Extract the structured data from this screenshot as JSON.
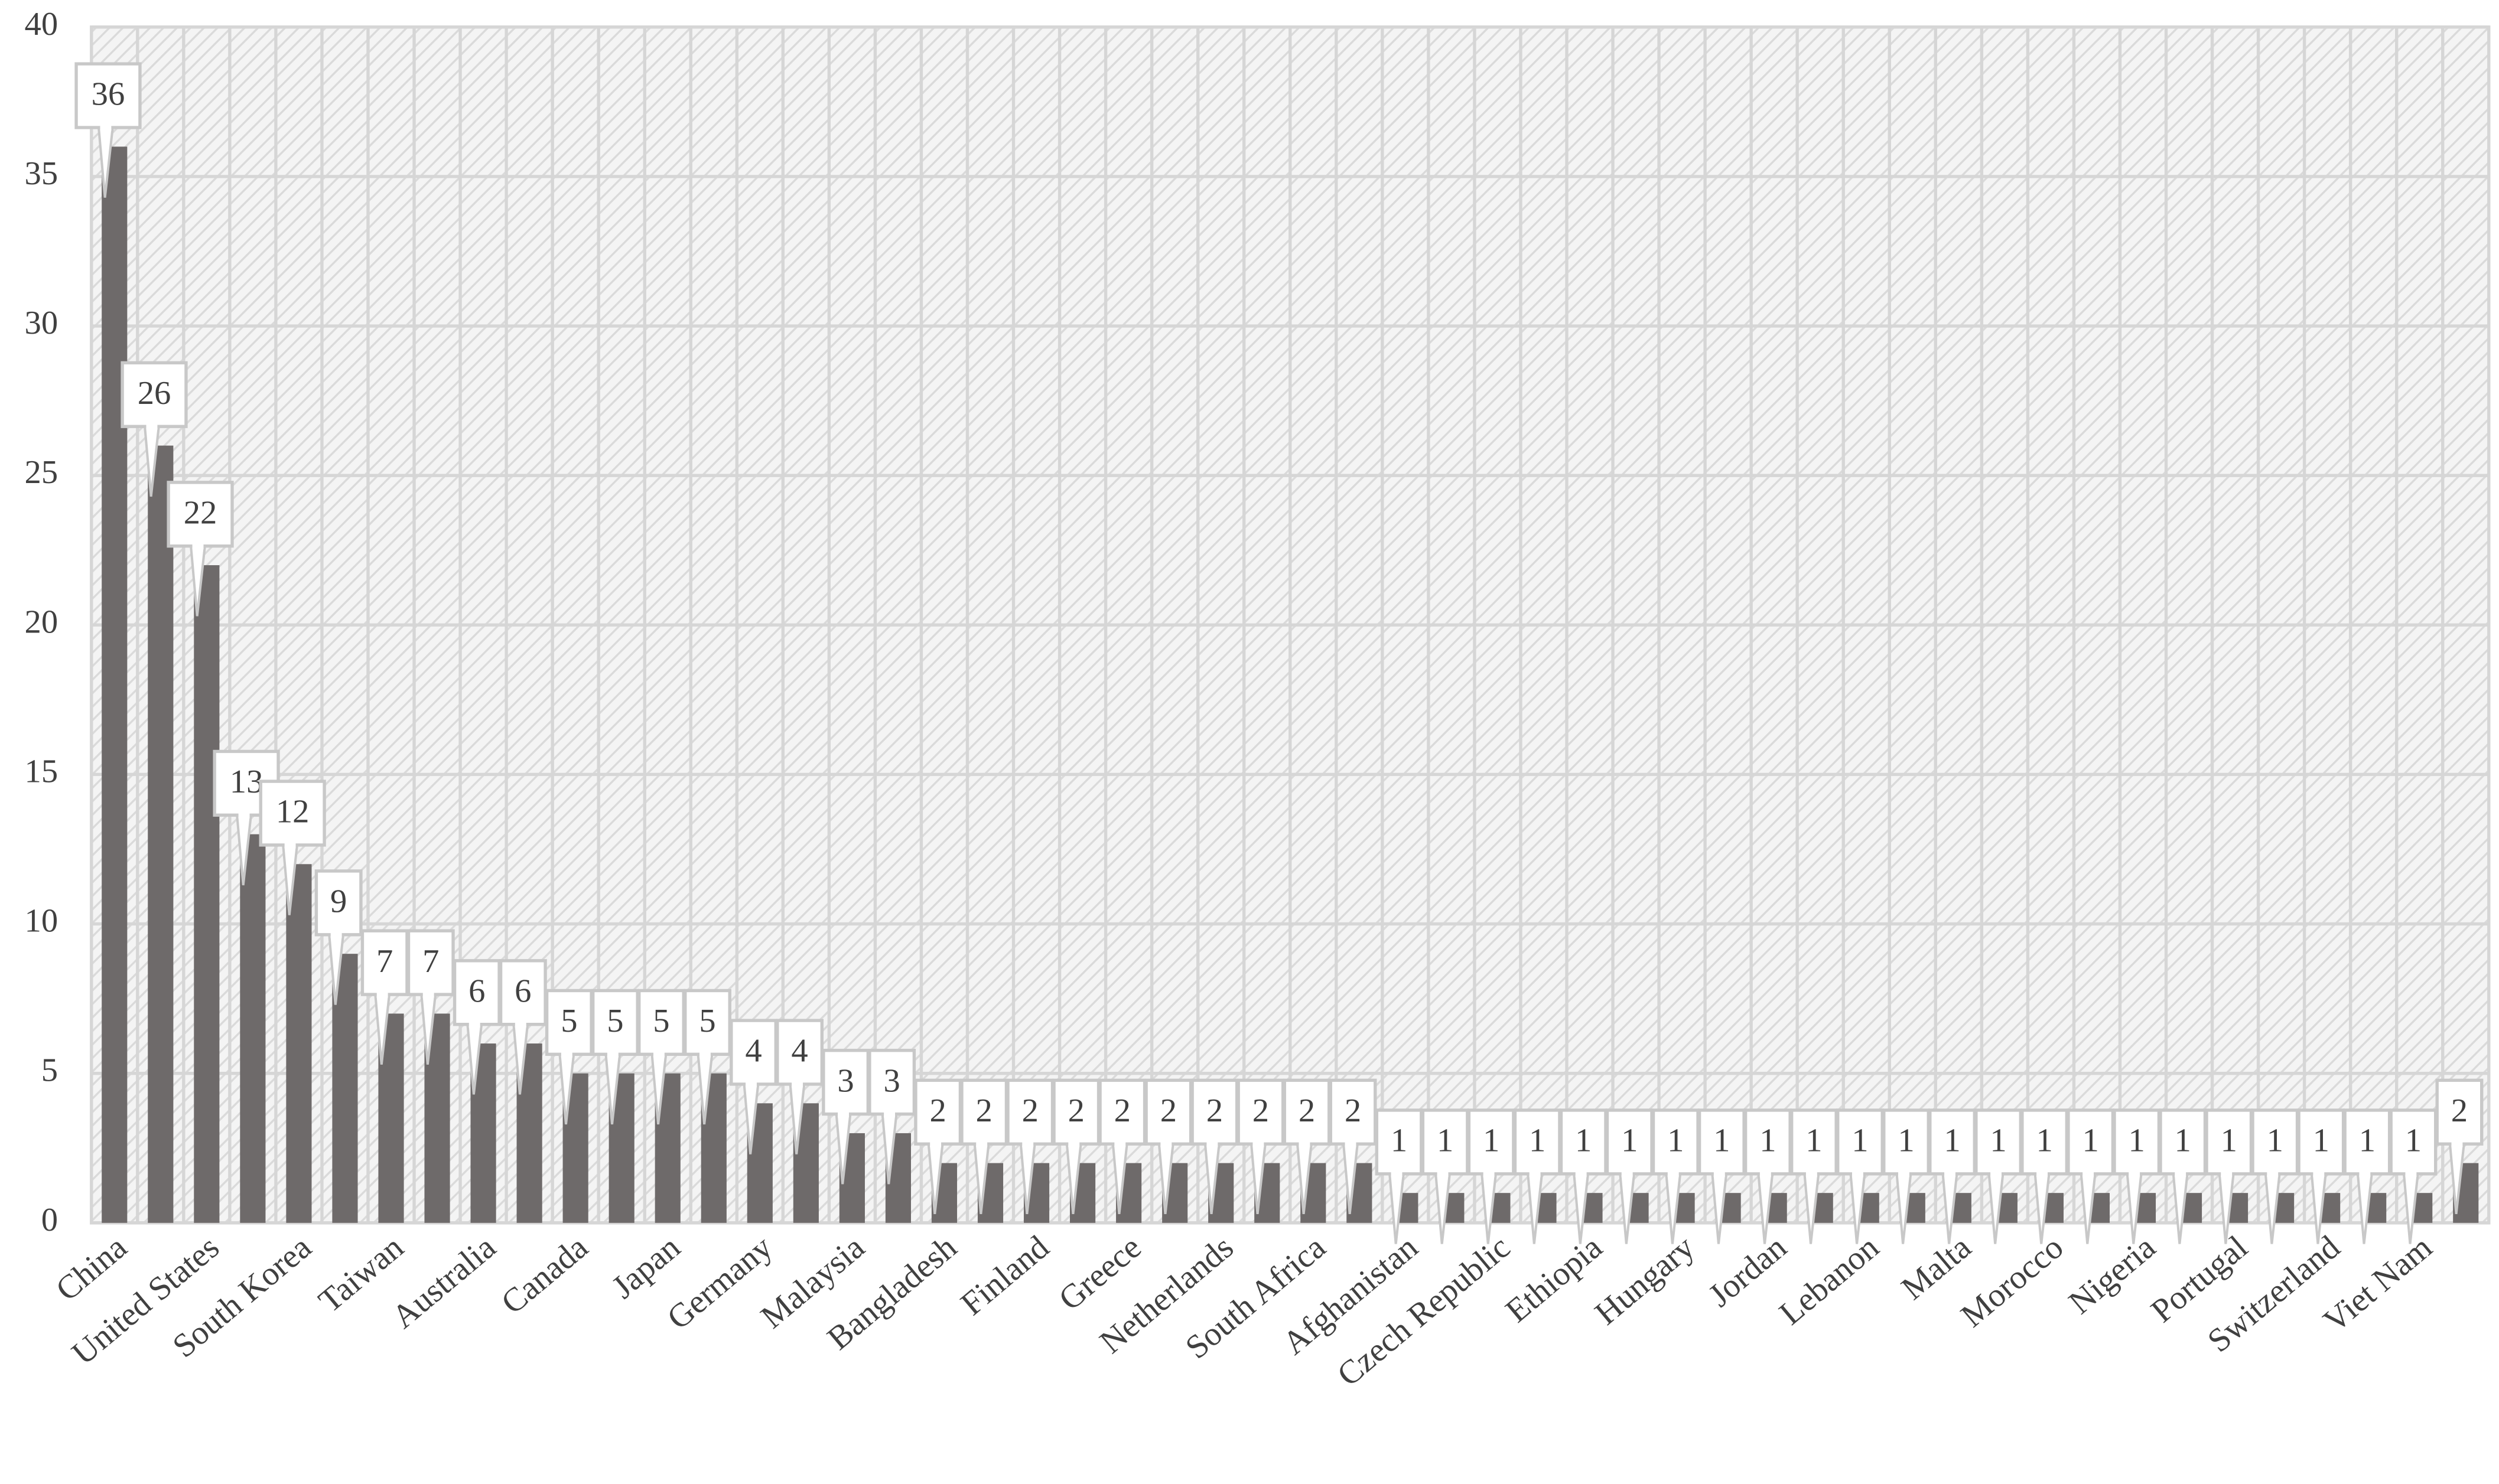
{
  "chart_data": {
    "type": "bar",
    "categories": [
      "China",
      null,
      "United States",
      null,
      "South Korea",
      null,
      "Taiwan",
      null,
      "Australia",
      null,
      "Canada",
      null,
      "Japan",
      null,
      "Germany",
      null,
      "Malaysia",
      null,
      "Bangladesh",
      null,
      "Finland",
      null,
      "Greece",
      null,
      "Netherlands",
      null,
      "South Africa",
      null,
      "Afghanistan",
      null,
      "Czech Republic",
      null,
      "Ethiopia",
      null,
      "Hungary",
      null,
      "Jordan",
      null,
      "Lebanon",
      null,
      "Malta",
      null,
      "Morocco",
      null,
      "Nigeria",
      null,
      "Portugal",
      null,
      "Switzerland",
      null,
      "Viet Nam",
      null
    ],
    "values": [
      36,
      26,
      22,
      13,
      12,
      9,
      7,
      7,
      6,
      6,
      5,
      5,
      5,
      5,
      4,
      4,
      3,
      3,
      2,
      2,
      2,
      2,
      2,
      2,
      2,
      2,
      2,
      2,
      1,
      1,
      1,
      1,
      1,
      1,
      1,
      1,
      1,
      1,
      1,
      1,
      1,
      1,
      1,
      1,
      1,
      1,
      1,
      1,
      1,
      1,
      1,
      2
    ],
    "color": "#6e6a6a",
    "ylim": [
      0,
      40
    ],
    "yticks": [
      0,
      5,
      10,
      15,
      20,
      25,
      30,
      35,
      40
    ],
    "grid": true
  }
}
